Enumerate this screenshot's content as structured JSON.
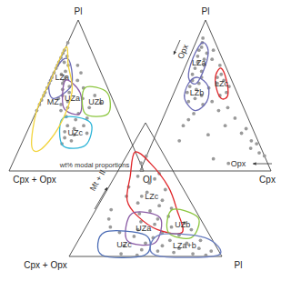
{
  "chart_data": [
    {
      "type": "ternary",
      "corners": [
        "Pl",
        "Cpx + Opx",
        "Ol"
      ],
      "annotations": [
        "wt% modal proportions"
      ],
      "color": "#9a9a9a",
      "points": [
        [
          85,
          15,
          0
        ],
        [
          80,
          20,
          0
        ],
        [
          78,
          22,
          0
        ],
        [
          75,
          25,
          0
        ],
        [
          72,
          28,
          0
        ],
        [
          70,
          30,
          0
        ],
        [
          68,
          32,
          0
        ],
        [
          65,
          35,
          0
        ],
        [
          62,
          38,
          0
        ],
        [
          60,
          40,
          0
        ],
        [
          58,
          42,
          0
        ],
        [
          55,
          45,
          0
        ],
        [
          52,
          48,
          0
        ],
        [
          50,
          50,
          0
        ],
        [
          47,
          53,
          0
        ],
        [
          44,
          56,
          0
        ],
        [
          40,
          60,
          0
        ],
        [
          76,
          20,
          4
        ],
        [
          72,
          24,
          4
        ],
        [
          70,
          22,
          8
        ],
        [
          66,
          26,
          8
        ],
        [
          64,
          30,
          6
        ],
        [
          62,
          28,
          10
        ],
        [
          60,
          30,
          10
        ],
        [
          58,
          32,
          10
        ],
        [
          56,
          28,
          16
        ],
        [
          54,
          34,
          12
        ],
        [
          52,
          30,
          18
        ],
        [
          50,
          36,
          14
        ],
        [
          48,
          40,
          12
        ],
        [
          46,
          34,
          20
        ],
        [
          44,
          40,
          16
        ],
        [
          42,
          36,
          22
        ],
        [
          40,
          42,
          18
        ],
        [
          38,
          30,
          32
        ],
        [
          36,
          40,
          24
        ],
        [
          34,
          34,
          32
        ],
        [
          30,
          42,
          28
        ],
        [
          28,
          38,
          34
        ],
        [
          26,
          46,
          28
        ],
        [
          24,
          40,
          36
        ],
        [
          22,
          48,
          30
        ],
        [
          20,
          44,
          36
        ],
        [
          18,
          52,
          30
        ],
        [
          55,
          18,
          27
        ],
        [
          50,
          12,
          38
        ],
        [
          45,
          10,
          45
        ],
        [
          42,
          20,
          38
        ],
        [
          48,
          22,
          30
        ],
        [
          60,
          20,
          20
        ],
        [
          65,
          15,
          20
        ],
        [
          70,
          15,
          15
        ],
        [
          35,
          25,
          40
        ],
        [
          30,
          30,
          40
        ],
        [
          25,
          30,
          45
        ]
      ],
      "fields": [
        {
          "name": "LZa",
          "color": "#6b6bb5",
          "outline": [
            [
              72,
              27,
              1
            ],
            [
              74,
              20,
              6
            ],
            [
              64,
              22,
              14
            ],
            [
              55,
              28,
              17
            ],
            [
              48,
              44,
              8
            ],
            [
              58,
              42,
              0
            ]
          ]
        },
        {
          "name": "UZa",
          "color": "#8b5ca5",
          "outline": [
            [
              60,
              29,
              11
            ],
            [
              52,
              22,
              26
            ],
            [
              38,
              29,
              33
            ],
            [
              42,
              39,
              19
            ]
          ]
        },
        {
          "name": "UZb",
          "color": "#8cc63f",
          "outline": [
            [
              55,
              17,
              28
            ],
            [
              52,
              2,
              46
            ],
            [
              38,
              8,
              54
            ],
            [
              38,
              25,
              37
            ]
          ]
        },
        {
          "name": "UZc",
          "color": "#2fb5d8",
          "outline": [
            [
              35,
              43,
              22
            ],
            [
              32,
              24,
              44
            ],
            [
              17,
              35,
              48
            ],
            [
              17,
              52,
              31
            ]
          ]
        },
        {
          "name": "MZ",
          "color": "#f2d43d",
          "outline": [
            [
              82,
              18,
              0
            ],
            [
              70,
              22,
              8
            ],
            [
              52,
              28,
              20
            ],
            [
              29,
              49,
              22
            ],
            [
              14,
              70,
              16
            ],
            [
              17,
              75,
              8
            ],
            [
              40,
              60,
              0
            ],
            [
              60,
              40,
              0
            ]
          ]
        }
      ]
    },
    {
      "type": "ternary",
      "corners": [
        "Pl",
        null,
        "Cpx"
      ],
      "annotations": [
        "Opx",
        "Opx"
      ],
      "color": "#9a9a9a",
      "points": [
        [
          88,
          8,
          4
        ],
        [
          85,
          10,
          5
        ],
        [
          82,
          12,
          6
        ],
        [
          80,
          15,
          5
        ],
        [
          78,
          10,
          12
        ],
        [
          76,
          18,
          6
        ],
        [
          74,
          14,
          12
        ],
        [
          72,
          20,
          8
        ],
        [
          70,
          16,
          14
        ],
        [
          68,
          24,
          8
        ],
        [
          66,
          20,
          14
        ],
        [
          64,
          28,
          8
        ],
        [
          62,
          22,
          16
        ],
        [
          60,
          30,
          10
        ],
        [
          58,
          26,
          16
        ],
        [
          56,
          34,
          10
        ],
        [
          55,
          20,
          25
        ],
        [
          54,
          30,
          16
        ],
        [
          52,
          38,
          10
        ],
        [
          50,
          28,
          22
        ],
        [
          48,
          34,
          18
        ],
        [
          46,
          40,
          14
        ],
        [
          44,
          30,
          26
        ],
        [
          62,
          10,
          28
        ],
        [
          60,
          6,
          34
        ],
        [
          58,
          12,
          30
        ],
        [
          56,
          4,
          40
        ],
        [
          64,
          6,
          30
        ],
        [
          52,
          8,
          40
        ],
        [
          50,
          14,
          36
        ],
        [
          40,
          20,
          40
        ],
        [
          35,
          10,
          55
        ],
        [
          30,
          20,
          50
        ],
        [
          28,
          5,
          67
        ],
        [
          25,
          10,
          65
        ],
        [
          20,
          5,
          75
        ],
        [
          18,
          2,
          80
        ],
        [
          15,
          8,
          77
        ],
        [
          12,
          3,
          85
        ],
        [
          10,
          0,
          90
        ],
        [
          38,
          40,
          22
        ],
        [
          34,
          46,
          20
        ],
        [
          30,
          52,
          18
        ],
        [
          24,
          36,
          40
        ],
        [
          20,
          60,
          20
        ],
        [
          8,
          40,
          52
        ],
        [
          5,
          30,
          65
        ],
        [
          42,
          12,
          46
        ],
        [
          46,
          22,
          32
        ],
        [
          70,
          4,
          26
        ],
        [
          74,
          8,
          18
        ],
        [
          80,
          4,
          16
        ]
      ],
      "fields": [
        {
          "name": "LZa",
          "color": "#6b6bb5",
          "outline": [
            [
              85,
              10,
              5
            ],
            [
              80,
              8,
              12
            ],
            [
              70,
              15,
              15
            ],
            [
              58,
              28,
              14
            ],
            [
              62,
              32,
              6
            ],
            [
              75,
              22,
              3
            ]
          ]
        },
        {
          "name": "LZb",
          "color": "#6b6bb5",
          "outline": [
            [
              62,
              25,
              13
            ],
            [
              56,
              20,
              24
            ],
            [
              46,
              26,
              28
            ],
            [
              40,
              38,
              22
            ],
            [
              48,
              42,
              10
            ],
            [
              58,
              34,
              8
            ]
          ]
        },
        {
          "name": "LZc",
          "color": "#e0262a",
          "outline": [
            [
              68,
              4,
              28
            ],
            [
              60,
              4,
              36
            ],
            [
              50,
              8,
              42
            ],
            [
              48,
              14,
              38
            ],
            [
              56,
              14,
              30
            ],
            [
              64,
              10,
              26
            ]
          ]
        }
      ]
    },
    {
      "type": "ternary",
      "corners": [
        null,
        "Cpx + Opx",
        "Pl"
      ],
      "annotations": [
        "Mt + Il"
      ],
      "color": "#9a9a9a",
      "points": [
        [
          70,
          18,
          12
        ],
        [
          65,
          20,
          15
        ],
        [
          60,
          25,
          15
        ],
        [
          58,
          15,
          27
        ],
        [
          55,
          20,
          25
        ],
        [
          50,
          12,
          38
        ],
        [
          48,
          25,
          27
        ],
        [
          45,
          30,
          25
        ],
        [
          42,
          18,
          40
        ],
        [
          40,
          35,
          25
        ],
        [
          38,
          22,
          40
        ],
        [
          36,
          15,
          49
        ],
        [
          34,
          30,
          36
        ],
        [
          32,
          38,
          30
        ],
        [
          30,
          20,
          50
        ],
        [
          28,
          28,
          44
        ],
        [
          26,
          40,
          34
        ],
        [
          25,
          12,
          63
        ],
        [
          24,
          32,
          44
        ],
        [
          22,
          22,
          56
        ],
        [
          20,
          45,
          35
        ],
        [
          20,
          10,
          70
        ],
        [
          18,
          30,
          52
        ],
        [
          16,
          20,
          64
        ],
        [
          15,
          50,
          35
        ],
        [
          14,
          38,
          48
        ],
        [
          12,
          28,
          60
        ],
        [
          12,
          8,
          80
        ],
        [
          10,
          45,
          45
        ],
        [
          10,
          18,
          72
        ],
        [
          8,
          60,
          32
        ],
        [
          8,
          35,
          57
        ],
        [
          6,
          25,
          69
        ],
        [
          6,
          12,
          82
        ],
        [
          5,
          50,
          45
        ],
        [
          4,
          40,
          56
        ],
        [
          4,
          5,
          91
        ],
        [
          3,
          30,
          67
        ],
        [
          2,
          18,
          80
        ],
        [
          2,
          65,
          33
        ],
        [
          1,
          55,
          44
        ],
        [
          1,
          10,
          89
        ],
        [
          45,
          40,
          15
        ],
        [
          52,
          35,
          13
        ],
        [
          75,
          12,
          13
        ],
        [
          62,
          10,
          28
        ],
        [
          35,
          55,
          10
        ],
        [
          28,
          60,
          12
        ],
        [
          22,
          62,
          16
        ],
        [
          18,
          58,
          24
        ]
      ],
      "fields": [
        {
          "name": "LZc",
          "color": "#e0262a",
          "outline": [
            [
              78,
              18,
              4
            ],
            [
              70,
              12,
              18
            ],
            [
              52,
              9,
              39
            ],
            [
              35,
              12,
              53
            ],
            [
              18,
              17,
              65
            ],
            [
              20,
              32,
              48
            ],
            [
              30,
              40,
              30
            ],
            [
              42,
              41,
              17
            ],
            [
              60,
              30,
              10
            ]
          ]
        },
        {
          "name": "UZa",
          "color": "#8b5ca5",
          "outline": [
            [
              32,
              43,
              25
            ],
            [
              29,
              26,
              45
            ],
            [
              10,
              39,
              51
            ],
            [
              12,
              56,
              32
            ]
          ]
        },
        {
          "name": "UZb",
          "color": "#8cc63f",
          "outline": [
            [
              35,
              15,
              50
            ],
            [
              29,
              1,
              70
            ],
            [
              14,
              13,
              73
            ],
            [
              18,
              26,
              56
            ]
          ]
        },
        {
          "name": "UZc",
          "color": "#4a6bb5",
          "outline": [
            [
              18,
              68,
              14
            ],
            [
              16,
              42,
              42
            ],
            [
              1,
              50,
              49
            ],
            [
              1,
              78,
              21
            ]
          ]
        },
        {
          "name": "LZa+b",
          "color": "#6b7fc0",
          "outline": [
            [
              16,
              33,
              51
            ],
            [
              14,
              4,
              82
            ],
            [
              1,
              2,
              97
            ],
            [
              1,
              43,
              56
            ]
          ]
        }
      ]
    }
  ]
}
